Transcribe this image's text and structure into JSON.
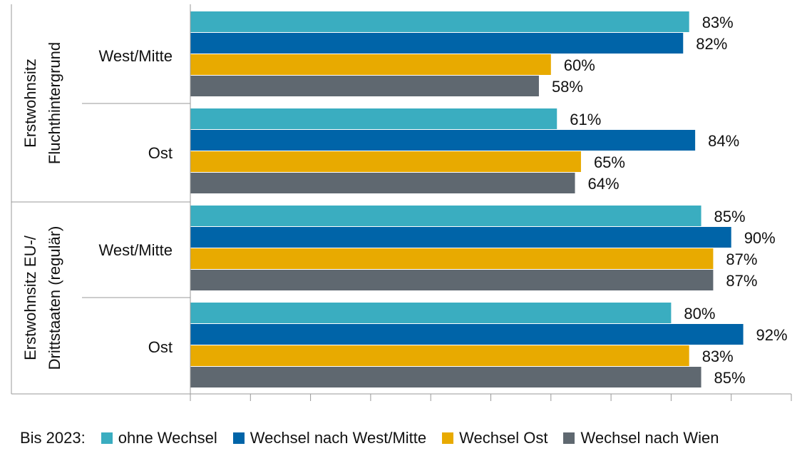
{
  "chart_data": {
    "type": "bar",
    "orientation": "horizontal",
    "xlim": [
      0,
      100
    ],
    "grid": false,
    "groups": [
      {
        "label": "Erstwohnsitz Fluchthintergrund",
        "label_lines": [
          "Erstwohnsitz",
          "Fluchthintergrund"
        ],
        "categories": [
          "West/Mitte",
          "Ost"
        ]
      },
      {
        "label": "Erstwohnsitz EU-/ Drittstaaten (regulär)",
        "label_lines": [
          "Erstwohnsitz EU-/",
          "Drittstaaten (regulär)"
        ],
        "categories": [
          "West/Mitte",
          "Ost"
        ]
      }
    ],
    "series": [
      {
        "name": "ohne Wechsel",
        "color": "#3aadc0",
        "values": [
          83,
          61,
          85,
          80
        ],
        "labels": [
          "83%",
          "61%",
          "85%",
          "80%"
        ]
      },
      {
        "name": "Wechsel nach West/Mitte",
        "color": "#0064a8",
        "values": [
          82,
          84,
          90,
          92
        ],
        "labels": [
          "82%",
          "84%",
          "90%",
          "92%"
        ]
      },
      {
        "name": "Wechsel Ost",
        "color": "#e8aa00",
        "values": [
          60,
          65,
          87,
          83
        ],
        "labels": [
          "60%",
          "65%",
          "87%",
          "83%"
        ]
      },
      {
        "name": "Wechsel nach Wien",
        "color": "#5f6870",
        "values": [
          58,
          64,
          87,
          85
        ],
        "labels": [
          "58%",
          "64%",
          "87%",
          "85%"
        ]
      }
    ],
    "legend": {
      "placement": "bottom",
      "prefix": "Bis 2023:"
    }
  }
}
